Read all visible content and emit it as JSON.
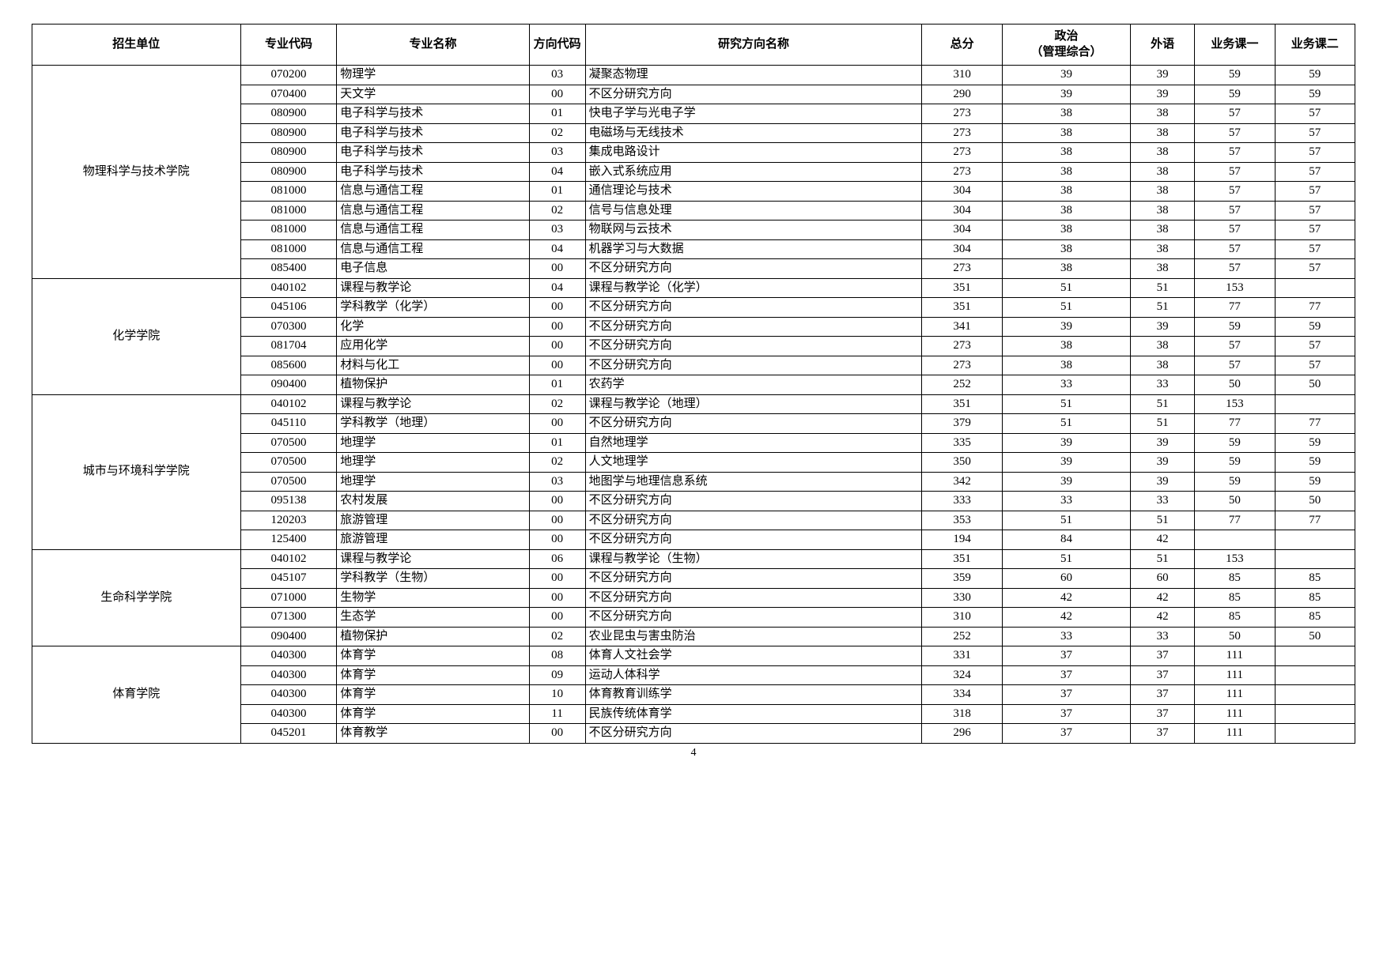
{
  "headers": {
    "unit": "招生单位",
    "code": "专业代码",
    "major": "专业名称",
    "dir": "方向代码",
    "dirname": "研究方向名称",
    "total": "总分",
    "politics": "政治\n（管理综合）",
    "foreign": "外语",
    "subj1": "业务课一",
    "subj2": "业务课二"
  },
  "page_number": "4",
  "groups": [
    {
      "unit": "物理科学与技术学院",
      "rows": [
        {
          "code": "070200",
          "major": "物理学",
          "dir": "03",
          "dirname": "凝聚态物理",
          "total": "310",
          "pol": "39",
          "for": "39",
          "s1": "59",
          "s2": "59"
        },
        {
          "code": "070400",
          "major": "天文学",
          "dir": "00",
          "dirname": "不区分研究方向",
          "total": "290",
          "pol": "39",
          "for": "39",
          "s1": "59",
          "s2": "59"
        },
        {
          "code": "080900",
          "major": "电子科学与技术",
          "dir": "01",
          "dirname": "快电子学与光电子学",
          "total": "273",
          "pol": "38",
          "for": "38",
          "s1": "57",
          "s2": "57"
        },
        {
          "code": "080900",
          "major": "电子科学与技术",
          "dir": "02",
          "dirname": "电磁场与无线技术",
          "total": "273",
          "pol": "38",
          "for": "38",
          "s1": "57",
          "s2": "57"
        },
        {
          "code": "080900",
          "major": "电子科学与技术",
          "dir": "03",
          "dirname": "集成电路设计",
          "total": "273",
          "pol": "38",
          "for": "38",
          "s1": "57",
          "s2": "57"
        },
        {
          "code": "080900",
          "major": "电子科学与技术",
          "dir": "04",
          "dirname": "嵌入式系统应用",
          "total": "273",
          "pol": "38",
          "for": "38",
          "s1": "57",
          "s2": "57"
        },
        {
          "code": "081000",
          "major": "信息与通信工程",
          "dir": "01",
          "dirname": "通信理论与技术",
          "total": "304",
          "pol": "38",
          "for": "38",
          "s1": "57",
          "s2": "57"
        },
        {
          "code": "081000",
          "major": "信息与通信工程",
          "dir": "02",
          "dirname": "信号与信息处理",
          "total": "304",
          "pol": "38",
          "for": "38",
          "s1": "57",
          "s2": "57"
        },
        {
          "code": "081000",
          "major": "信息与通信工程",
          "dir": "03",
          "dirname": "物联网与云技术",
          "total": "304",
          "pol": "38",
          "for": "38",
          "s1": "57",
          "s2": "57"
        },
        {
          "code": "081000",
          "major": "信息与通信工程",
          "dir": "04",
          "dirname": "机器学习与大数据",
          "total": "304",
          "pol": "38",
          "for": "38",
          "s1": "57",
          "s2": "57"
        },
        {
          "code": "085400",
          "major": "电子信息",
          "dir": "00",
          "dirname": "不区分研究方向",
          "total": "273",
          "pol": "38",
          "for": "38",
          "s1": "57",
          "s2": "57"
        }
      ]
    },
    {
      "unit": "化学学院",
      "rows": [
        {
          "code": "040102",
          "major": "课程与教学论",
          "dir": "04",
          "dirname": "课程与教学论（化学）",
          "total": "351",
          "pol": "51",
          "for": "51",
          "s1": "153",
          "s2": ""
        },
        {
          "code": "045106",
          "major": "学科教学（化学）",
          "dir": "00",
          "dirname": "不区分研究方向",
          "total": "351",
          "pol": "51",
          "for": "51",
          "s1": "77",
          "s2": "77"
        },
        {
          "code": "070300",
          "major": "化学",
          "dir": "00",
          "dirname": "不区分研究方向",
          "total": "341",
          "pol": "39",
          "for": "39",
          "s1": "59",
          "s2": "59"
        },
        {
          "code": "081704",
          "major": "应用化学",
          "dir": "00",
          "dirname": "不区分研究方向",
          "total": "273",
          "pol": "38",
          "for": "38",
          "s1": "57",
          "s2": "57"
        },
        {
          "code": "085600",
          "major": "材料与化工",
          "dir": "00",
          "dirname": "不区分研究方向",
          "total": "273",
          "pol": "38",
          "for": "38",
          "s1": "57",
          "s2": "57"
        },
        {
          "code": "090400",
          "major": "植物保护",
          "dir": "01",
          "dirname": "农药学",
          "total": "252",
          "pol": "33",
          "for": "33",
          "s1": "50",
          "s2": "50"
        }
      ]
    },
    {
      "unit": "城市与环境科学学院",
      "rows": [
        {
          "code": "040102",
          "major": "课程与教学论",
          "dir": "02",
          "dirname": "课程与教学论（地理）",
          "total": "351",
          "pol": "51",
          "for": "51",
          "s1": "153",
          "s2": ""
        },
        {
          "code": "045110",
          "major": "学科教学（地理）",
          "dir": "00",
          "dirname": "不区分研究方向",
          "total": "379",
          "pol": "51",
          "for": "51",
          "s1": "77",
          "s2": "77"
        },
        {
          "code": "070500",
          "major": "地理学",
          "dir": "01",
          "dirname": "自然地理学",
          "total": "335",
          "pol": "39",
          "for": "39",
          "s1": "59",
          "s2": "59"
        },
        {
          "code": "070500",
          "major": "地理学",
          "dir": "02",
          "dirname": "人文地理学",
          "total": "350",
          "pol": "39",
          "for": "39",
          "s1": "59",
          "s2": "59"
        },
        {
          "code": "070500",
          "major": "地理学",
          "dir": "03",
          "dirname": "地图学与地理信息系统",
          "total": "342",
          "pol": "39",
          "for": "39",
          "s1": "59",
          "s2": "59"
        },
        {
          "code": "095138",
          "major": "农村发展",
          "dir": "00",
          "dirname": "不区分研究方向",
          "total": "333",
          "pol": "33",
          "for": "33",
          "s1": "50",
          "s2": "50"
        },
        {
          "code": "120203",
          "major": "旅游管理",
          "dir": "00",
          "dirname": "不区分研究方向",
          "total": "353",
          "pol": "51",
          "for": "51",
          "s1": "77",
          "s2": "77"
        },
        {
          "code": "125400",
          "major": "旅游管理",
          "dir": "00",
          "dirname": "不区分研究方向",
          "total": "194",
          "pol": "84",
          "for": "42",
          "s1": "",
          "s2": ""
        }
      ]
    },
    {
      "unit": "生命科学学院",
      "rows": [
        {
          "code": "040102",
          "major": "课程与教学论",
          "dir": "06",
          "dirname": "课程与教学论（生物）",
          "total": "351",
          "pol": "51",
          "for": "51",
          "s1": "153",
          "s2": ""
        },
        {
          "code": "045107",
          "major": "学科教学（生物）",
          "dir": "00",
          "dirname": "不区分研究方向",
          "total": "359",
          "pol": "60",
          "for": "60",
          "s1": "85",
          "s2": "85"
        },
        {
          "code": "071000",
          "major": "生物学",
          "dir": "00",
          "dirname": "不区分研究方向",
          "total": "330",
          "pol": "42",
          "for": "42",
          "s1": "85",
          "s2": "85"
        },
        {
          "code": "071300",
          "major": "生态学",
          "dir": "00",
          "dirname": "不区分研究方向",
          "total": "310",
          "pol": "42",
          "for": "42",
          "s1": "85",
          "s2": "85"
        },
        {
          "code": "090400",
          "major": "植物保护",
          "dir": "02",
          "dirname": "农业昆虫与害虫防治",
          "total": "252",
          "pol": "33",
          "for": "33",
          "s1": "50",
          "s2": "50"
        }
      ]
    },
    {
      "unit": "体育学院",
      "rows": [
        {
          "code": "040300",
          "major": "体育学",
          "dir": "08",
          "dirname": "体育人文社会学",
          "total": "331",
          "pol": "37",
          "for": "37",
          "s1": "111",
          "s2": ""
        },
        {
          "code": "040300",
          "major": "体育学",
          "dir": "09",
          "dirname": "运动人体科学",
          "total": "324",
          "pol": "37",
          "for": "37",
          "s1": "111",
          "s2": ""
        },
        {
          "code": "040300",
          "major": "体育学",
          "dir": "10",
          "dirname": "体育教育训练学",
          "total": "334",
          "pol": "37",
          "for": "37",
          "s1": "111",
          "s2": ""
        },
        {
          "code": "040300",
          "major": "体育学",
          "dir": "11",
          "dirname": "民族传统体育学",
          "total": "318",
          "pol": "37",
          "for": "37",
          "s1": "111",
          "s2": ""
        },
        {
          "code": "045201",
          "major": "体育教学",
          "dir": "00",
          "dirname": "不区分研究方向",
          "total": "296",
          "pol": "37",
          "for": "37",
          "s1": "111",
          "s2": ""
        }
      ]
    }
  ]
}
